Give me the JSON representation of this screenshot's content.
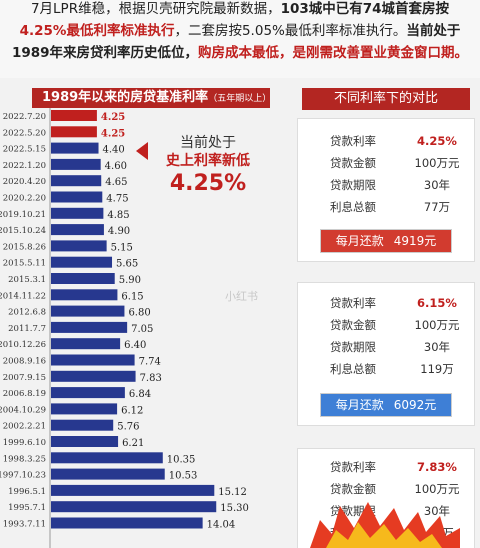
{
  "intro": {
    "line1_a": "7月LPR维稳，根据贝壳研究院最新数据，",
    "line1_b": "103城中已有74城首套房按",
    "line2_a": "4.25%最低利率标准执行",
    "line2_b": "，二套房按5.05%最低利率标准执行。",
    "line2_c": "当前处于",
    "line3_a": "1989年来房贷利率历史低位，",
    "line3_b": "购房成本最低，是刚需改善置业黄金窗口期。"
  },
  "chart_title": "1989年以来的房贷基准利率",
  "chart_title_note": "（五年期以上）",
  "callout": {
    "line1": "当前处于",
    "line2": "史上利率新低",
    "line3": "4.25%"
  },
  "comparison_title": "不同利率下的对比",
  "watermark": "小红书",
  "colors": {
    "accent": "#b32622",
    "bar_current": "#c0201e",
    "bar_normal": "#27388f"
  },
  "chart_data": {
    "type": "bar",
    "orientation": "horizontal",
    "title": "1989年以来的房贷基准利率",
    "categories": [
      "2022.7.20",
      "2022.5.20",
      "2022.5.15",
      "2022.1.20",
      "2020.4.20",
      "2020.2.20",
      "2019.10.21",
      "2015.10.24",
      "2015.8.26",
      "2015.5.11",
      "2015.3.1",
      "2014.11.22",
      "2012.6.8",
      "2011.7.7",
      "2010.12.26",
      "2008.9.16",
      "2007.9.15",
      "2006.8.19",
      "2004.10.29",
      "2002.2.21",
      "1999.6.10",
      "1998.3.25",
      "1997.10.23",
      "1996.5.1",
      "1995.7.1",
      "1993.7.11"
    ],
    "values": [
      4.25,
      4.25,
      4.4,
      4.6,
      4.65,
      4.75,
      4.85,
      4.9,
      5.15,
      5.65,
      5.9,
      6.15,
      6.8,
      7.05,
      6.4,
      7.74,
      7.83,
      6.84,
      6.12,
      5.76,
      6.21,
      10.35,
      10.53,
      15.12,
      15.3,
      14.04
    ],
    "value_labels": [
      "4.25",
      "4.25",
      "4.40",
      "4.60",
      "4.65",
      "4.75",
      "4.85",
      "4.90",
      "5.15",
      "5.65",
      "5.90",
      "6.15",
      "6.80",
      "7.05",
      "6.40",
      "7.74",
      "7.83",
      "6.84",
      "6.12",
      "5.76",
      "6.21",
      "10.35",
      "10.53",
      "15.12",
      "15.30",
      "14.04"
    ],
    "highlighted": [
      true,
      true,
      false,
      false,
      false,
      false,
      false,
      false,
      false,
      false,
      false,
      false,
      false,
      false,
      false,
      false,
      false,
      false,
      false,
      false,
      false,
      false,
      false,
      false,
      false,
      false
    ],
    "xlim": [
      0,
      16
    ]
  },
  "cards": [
    {
      "rows": [
        {
          "k": "贷款利率",
          "v": "4.25%",
          "hl": true
        },
        {
          "k": "贷款金额",
          "v": "100万元",
          "hl": false
        },
        {
          "k": "贷款期限",
          "v": "30年",
          "hl": false
        },
        {
          "k": "利息总额",
          "v": "77万",
          "hl": false
        }
      ],
      "pay_label": "每月还款",
      "pay_value": "4919元",
      "pay_color": "#d23b2f"
    },
    {
      "rows": [
        {
          "k": "贷款利率",
          "v": "6.15%",
          "hl": true
        },
        {
          "k": "贷款金额",
          "v": "100万元",
          "hl": false
        },
        {
          "k": "贷款期限",
          "v": "30年",
          "hl": false
        },
        {
          "k": "利息总额",
          "v": "119万",
          "hl": false
        }
      ],
      "pay_label": "每月还款",
      "pay_value": "6092元",
      "pay_color": "#3e7fd6"
    },
    {
      "rows": [
        {
          "k": "贷款利率",
          "v": "7.83%",
          "hl": true
        },
        {
          "k": "贷款金额",
          "v": "100万元",
          "hl": false
        },
        {
          "k": "贷款期限",
          "v": "30年",
          "hl": false
        },
        {
          "k": "利息总额",
          "v": "159万",
          "hl": false
        }
      ]
    }
  ]
}
